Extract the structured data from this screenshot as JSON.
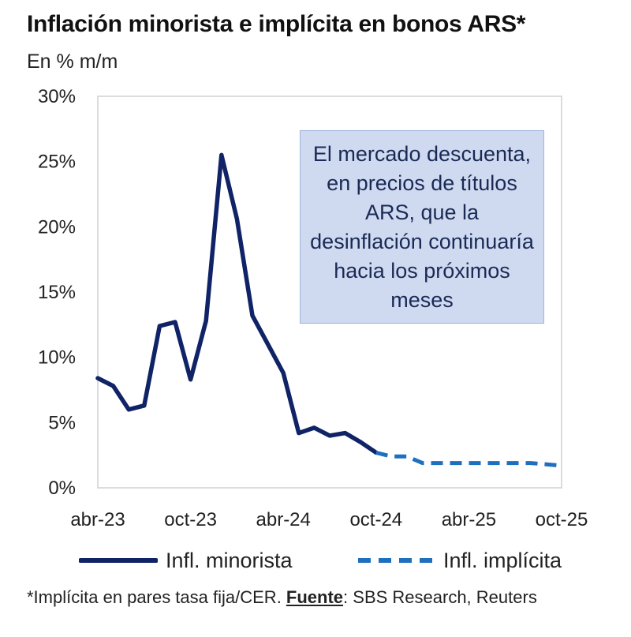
{
  "title": "Inflación minorista e implícita en bonos ARS*",
  "subtitle": "En % m/m",
  "annotation": "El mercado descuenta, en precios de títulos ARS, que la desinflación continuaría hacia los próximos meses",
  "legend": {
    "retail": "Infl. minorista",
    "implied": "Infl. implícita"
  },
  "footnote": {
    "prefix": "*Implícita en pares tasa fija/CER. ",
    "source_label": "Fuente",
    "source_text": ": SBS Research, Reuters"
  },
  "colors": {
    "retail": "#0f2366",
    "implied": "#1f6fbf",
    "annotation_bg": "#cfdaf0"
  },
  "chart_data": {
    "type": "line",
    "title": "Inflación minorista e implícita en bonos ARS*",
    "ylabel": "En % m/m",
    "ylim": [
      0,
      30
    ],
    "yticks": [
      "0%",
      "5%",
      "10%",
      "15%",
      "20%",
      "25%",
      "30%"
    ],
    "xticks": [
      "abr-23",
      "oct-23",
      "abr-24",
      "oct-24",
      "abr-25",
      "oct-25"
    ],
    "grid": false,
    "legend": "bottom",
    "series": [
      {
        "name": "Infl. minorista",
        "style": "solid",
        "x": [
          "abr-23",
          "may-23",
          "jun-23",
          "jul-23",
          "ago-23",
          "sep-23",
          "oct-23",
          "nov-23",
          "dic-23",
          "ene-24",
          "feb-24",
          "mar-24",
          "abr-24",
          "may-24",
          "jun-24",
          "jul-24",
          "ago-24",
          "sep-24",
          "oct-24"
        ],
        "values": [
          8.4,
          7.8,
          6.0,
          6.3,
          12.4,
          12.7,
          8.3,
          12.8,
          25.5,
          20.6,
          13.2,
          11.0,
          8.8,
          4.2,
          4.6,
          4.0,
          4.2,
          3.5,
          2.7
        ]
      },
      {
        "name": "Infl. implícita",
        "style": "dashed",
        "x": [
          "oct-24",
          "nov-24",
          "dic-24",
          "ene-25",
          "feb-25",
          "mar-25",
          "abr-25",
          "may-25",
          "jun-25",
          "jul-25",
          "ago-25",
          "sep-25",
          "oct-25"
        ],
        "values": [
          2.7,
          2.4,
          2.4,
          1.9,
          1.9,
          1.9,
          1.9,
          1.9,
          1.9,
          1.9,
          1.9,
          1.8,
          1.7
        ]
      }
    ]
  }
}
